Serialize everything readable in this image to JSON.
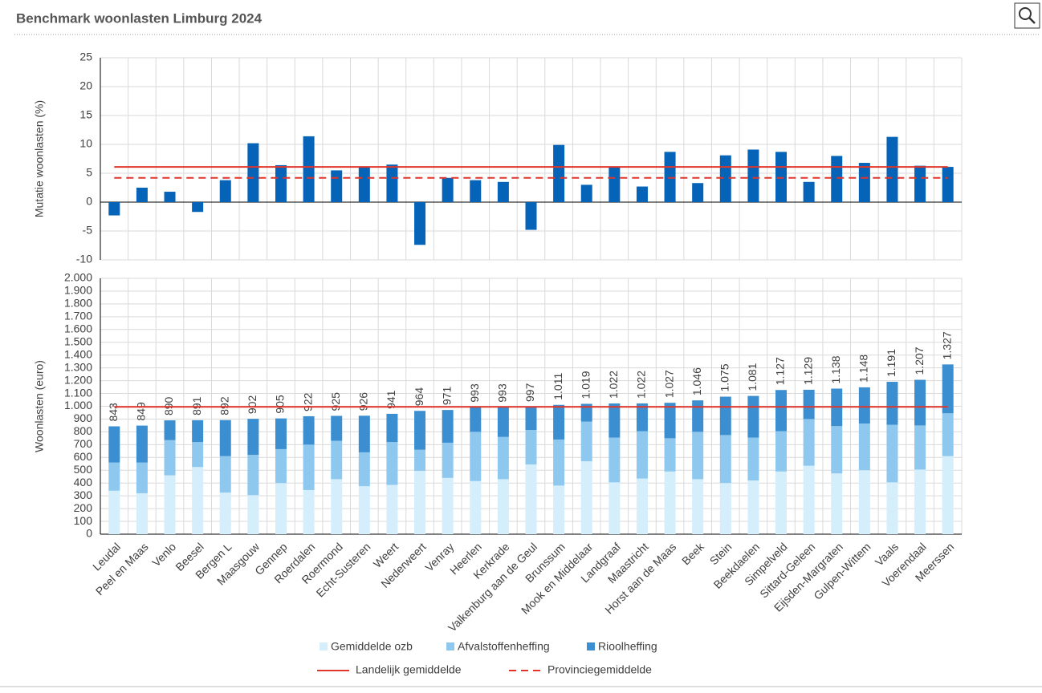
{
  "header": {
    "title": "Benchmark woonlasten Limburg 2024"
  },
  "chart_data": [
    {
      "type": "bar",
      "ylabel": "Mutatie woonlasten  (%)",
      "categories": [
        "Leudal",
        "Peel en Maas",
        "Venlo",
        "Beesel",
        "Bergen L",
        "Maasgouw",
        "Gennep",
        "Roerdalen",
        "Roermond",
        "Echt-Susteren",
        "Weert",
        "Nederweert",
        "Venray",
        "Heerlen",
        "Kerkrade",
        "Valkenburg aan de Geul",
        "Brunssum",
        "Mook en Middelaar",
        "Landgraaf",
        "Maastricht",
        "Horst aan de Maas",
        "Beek",
        "Stein",
        "Beekdaelen",
        "Simpelveld",
        "Sittard-Geleen",
        "Eijsden-Margraten",
        "Gulpen-Wittem",
        "Vaals",
        "Voerendaal",
        "Meerssen"
      ],
      "values": [
        -2.3,
        2.5,
        1.8,
        -1.7,
        3.8,
        10.2,
        6.4,
        11.4,
        5.5,
        6.1,
        6.5,
        -7.4,
        4.2,
        3.8,
        3.5,
        -4.8,
        9.9,
        3.0,
        6.1,
        2.7,
        8.7,
        3.3,
        8.1,
        9.1,
        8.7,
        3.5,
        8.0,
        6.8,
        11.3,
        6.3,
        6.1
      ],
      "color": "#0563b8",
      "lines": [
        {
          "value": 6.1,
          "color": "#e0352b",
          "dashed": false
        },
        {
          "value": 4.2,
          "color": "#e0352b",
          "dashed": true
        }
      ],
      "ylim": [
        -10,
        25
      ],
      "yticks": [
        -10,
        -5,
        0,
        5,
        10,
        15,
        20,
        25
      ],
      "grid": true
    },
    {
      "type": "stacked_bar",
      "ylabel": "Woonlasten  (euro)",
      "categories": [
        "Leudal",
        "Peel en Maas",
        "Venlo",
        "Beesel",
        "Bergen L",
        "Maasgouw",
        "Gennep",
        "Roerdalen",
        "Roermond",
        "Echt-Susteren",
        "Weert",
        "Nederweert",
        "Venray",
        "Heerlen",
        "Kerkrade",
        "Valkenburg aan de Geul",
        "Brunssum",
        "Mook en Middelaar",
        "Landgraaf",
        "Maastricht",
        "Horst aan de Maas",
        "Beek",
        "Stein",
        "Beekdaelen",
        "Simpelveld",
        "Sittard-Geleen",
        "Eijsden-Margraten",
        "Gulpen-Wittem",
        "Vaals",
        "Voerendaal",
        "Meerssen"
      ],
      "series": [
        {
          "name": "Gemiddelde ozb",
          "color": "#d4eefc",
          "values": [
            340,
            320,
            460,
            525,
            325,
            305,
            400,
            345,
            430,
            375,
            385,
            495,
            440,
            415,
            430,
            545,
            380,
            570,
            405,
            435,
            490,
            430,
            400,
            420,
            490,
            535,
            475,
            500,
            405,
            505,
            610
          ]
        },
        {
          "name": "Afvalstoffenheffing",
          "color": "#8fc8ee",
          "values": [
            220,
            240,
            275,
            195,
            285,
            315,
            265,
            355,
            300,
            265,
            335,
            165,
            275,
            385,
            330,
            270,
            360,
            310,
            350,
            370,
            260,
            370,
            375,
            335,
            315,
            365,
            370,
            365,
            450,
            345,
            335
          ]
        },
        {
          "name": "Rioolheffing",
          "color": "#3b8fd1",
          "values": [
            283,
            289,
            155,
            171,
            282,
            282,
            240,
            222,
            195,
            286,
            221,
            304,
            256,
            193,
            233,
            182,
            271,
            139,
            267,
            217,
            277,
            246,
            300,
            326,
            322,
            229,
            293,
            283,
            336,
            357,
            382
          ]
        }
      ],
      "totals": {
        "values": [
          843,
          849,
          890,
          891,
          892,
          902,
          905,
          922,
          925,
          926,
          941,
          964,
          971,
          993,
          993,
          997,
          1011,
          1019,
          1022,
          1022,
          1027,
          1046,
          1075,
          1081,
          1127,
          1129,
          1138,
          1148,
          1191,
          1207,
          1327
        ],
        "value_labels": [
          "843",
          "849",
          "890",
          "891",
          "892",
          "902",
          "905",
          "922",
          "925",
          "926",
          "941",
          "964",
          "971",
          "993",
          "993",
          "997",
          "1.011",
          "1.019",
          "1.022",
          "1.022",
          "1.027",
          "1.046",
          "1.075",
          "1.081",
          "1.127",
          "1.129",
          "1.138",
          "1.148",
          "1.191",
          "1.207",
          "1.327"
        ]
      },
      "lines": [
        {
          "name": "Landelijk gemiddelde",
          "value": 995,
          "color": "#e0352b",
          "dashed": false
        },
        {
          "name": "Provinciegemiddelde",
          "color": "#e0352b",
          "dashed": true
        }
      ],
      "ylim": [
        0,
        2000
      ],
      "yticks": [
        0,
        100,
        200,
        300,
        400,
        500,
        600,
        700,
        800,
        900,
        {
          "value": 1000,
          "label": "1.000"
        },
        {
          "value": 1100,
          "label": "1.100"
        },
        {
          "value": 1200,
          "label": "1.200"
        },
        {
          "value": 1300,
          "label": "1.300"
        },
        {
          "value": 1400,
          "label": "1.400"
        },
        {
          "value": 1500,
          "label": "1.500"
        },
        {
          "value": 1600,
          "label": "1.600"
        },
        {
          "value": 1700,
          "label": "1.700"
        },
        {
          "value": 1800,
          "label": "1.800"
        },
        {
          "value": 1900,
          "label": "1.900"
        },
        {
          "value": 2000,
          "label": "2.000"
        }
      ],
      "grid": true
    }
  ]
}
